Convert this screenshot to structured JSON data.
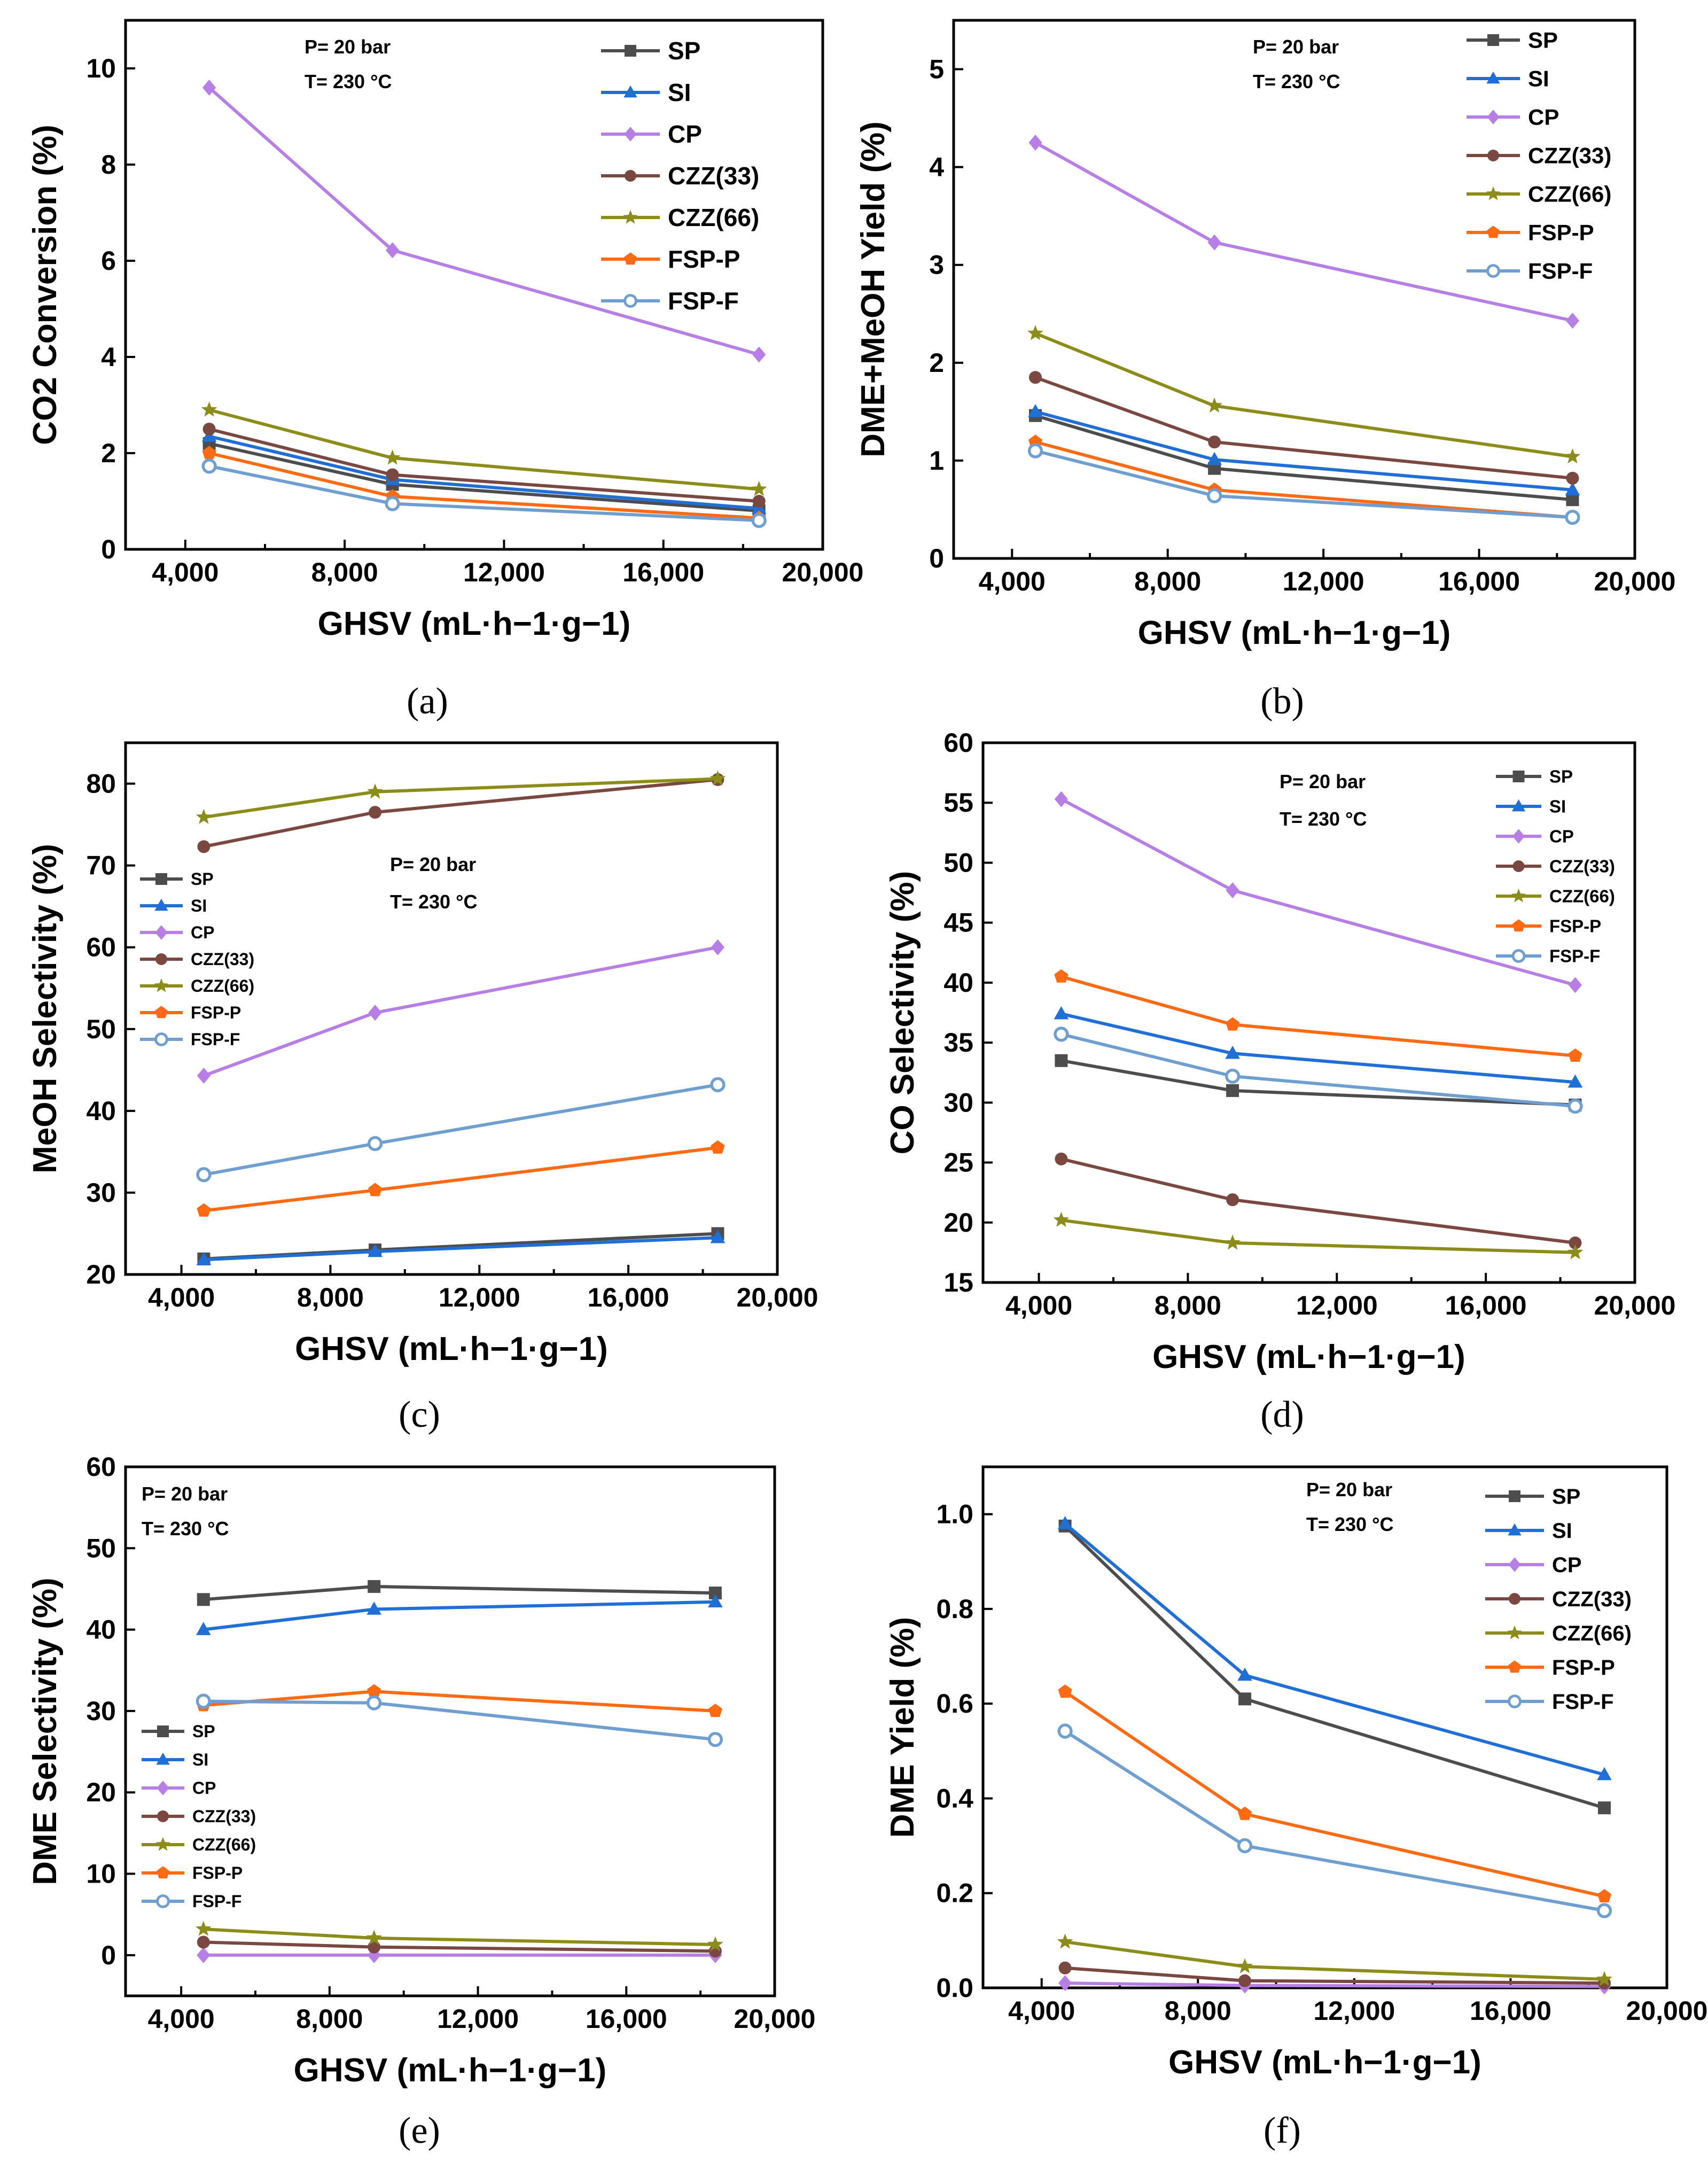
{
  "chart_data": [
    {
      "type": "line",
      "panel": "a",
      "caption": "(a)",
      "ylabel": "CO2 Conversion (%)",
      "xlabel": "GHSV (mL·h−1·g−1)",
      "x": [
        4600,
        9200,
        18400
      ],
      "xlim": [
        2500,
        20000
      ],
      "xticks": [
        4000,
        8000,
        12000,
        16000,
        20000
      ],
      "xtick_labels": [
        "4,000",
        "8,000",
        "12,000",
        "16,000",
        "20,000"
      ],
      "ylim": [
        0,
        11
      ],
      "yticks": [
        0,
        2,
        4,
        6,
        8,
        10
      ],
      "ytick_labels": [
        "0",
        "2",
        "4",
        "6",
        "8",
        "10"
      ],
      "conditions": [
        "P= 20 bar",
        "T= 230 °C"
      ],
      "legend_position": "top-right",
      "series": [
        {
          "name": "SP",
          "values": [
            2.2,
            1.35,
            0.8
          ]
        },
        {
          "name": "SI",
          "values": [
            2.35,
            1.45,
            0.85
          ]
        },
        {
          "name": "CP",
          "values": [
            9.6,
            6.22,
            4.05
          ]
        },
        {
          "name": "CZZ(33)",
          "values": [
            2.5,
            1.55,
            1.0
          ]
        },
        {
          "name": "CZZ(66)",
          "values": [
            2.9,
            1.9,
            1.25
          ]
        },
        {
          "name": "FSP-P",
          "values": [
            2.0,
            1.1,
            0.65
          ]
        },
        {
          "name": "FSP-F",
          "values": [
            1.73,
            0.95,
            0.6
          ]
        }
      ]
    },
    {
      "type": "line",
      "panel": "b",
      "caption": "(b)",
      "ylabel": "DME+MeOH Yield (%)",
      "xlabel": "GHSV (mL·h−1·g−1)",
      "x": [
        4600,
        9200,
        18400
      ],
      "xlim": [
        2500,
        20000
      ],
      "xticks": [
        4000,
        8000,
        12000,
        16000,
        20000
      ],
      "xtick_labels": [
        "4,000",
        "8,000",
        "12,000",
        "16,000",
        "20,000"
      ],
      "ylim": [
        0,
        5.5
      ],
      "yticks": [
        0,
        1,
        2,
        3,
        4,
        5
      ],
      "ytick_labels": [
        "0",
        "1",
        "2",
        "3",
        "4",
        "5"
      ],
      "conditions": [
        "P= 20 bar",
        "T= 230 °C"
      ],
      "legend_position": "top-right",
      "series": [
        {
          "name": "SP",
          "values": [
            1.46,
            0.92,
            0.6
          ]
        },
        {
          "name": "SI",
          "values": [
            1.5,
            1.01,
            0.7
          ]
        },
        {
          "name": "CP",
          "values": [
            4.25,
            3.23,
            2.43
          ]
        },
        {
          "name": "CZZ(33)",
          "values": [
            1.85,
            1.19,
            0.82
          ]
        },
        {
          "name": "CZZ(66)",
          "values": [
            2.3,
            1.56,
            1.04
          ]
        },
        {
          "name": "FSP-P",
          "values": [
            1.19,
            0.7,
            0.42
          ]
        },
        {
          "name": "FSP-F",
          "values": [
            1.1,
            0.64,
            0.42
          ]
        }
      ]
    },
    {
      "type": "line",
      "panel": "c",
      "caption": "(c)",
      "ylabel": "MeOH Selectivity (%)",
      "xlabel": "GHSV (mL·h−1·g−1)",
      "x": [
        4600,
        9200,
        18400
      ],
      "xlim": [
        2500,
        20000
      ],
      "xticks": [
        4000,
        8000,
        12000,
        16000,
        20000
      ],
      "xtick_labels": [
        "4,000",
        "8,000",
        "12,000",
        "16,000",
        "20,000"
      ],
      "ylim": [
        20,
        85
      ],
      "yticks": [
        20,
        30,
        40,
        50,
        60,
        70,
        80
      ],
      "ytick_labels": [
        "20",
        "30",
        "40",
        "50",
        "60",
        "70",
        "80"
      ],
      "conditions": [
        "P= 20 bar",
        "T= 230 °C"
      ],
      "legend_position": "middle-left",
      "series": [
        {
          "name": "SP",
          "values": [
            21.9,
            23.0,
            25.0
          ]
        },
        {
          "name": "SI",
          "values": [
            21.8,
            22.8,
            24.5
          ]
        },
        {
          "name": "CP",
          "values": [
            44.3,
            52.0,
            60.0
          ]
        },
        {
          "name": "CZZ(33)",
          "values": [
            72.3,
            76.5,
            80.5
          ]
        },
        {
          "name": "CZZ(66)",
          "values": [
            75.9,
            79.0,
            80.6
          ]
        },
        {
          "name": "FSP-P",
          "values": [
            27.8,
            30.3,
            35.5
          ]
        },
        {
          "name": "FSP-F",
          "values": [
            32.2,
            36.0,
            43.2
          ]
        }
      ]
    },
    {
      "type": "line",
      "panel": "d",
      "caption": "(d)",
      "ylabel": "CO Selectivity (%)",
      "xlabel": "GHSV (mL·h−1·g−1)",
      "x": [
        4600,
        9200,
        18400
      ],
      "xlim": [
        2500,
        20000
      ],
      "xticks": [
        4000,
        8000,
        12000,
        16000,
        20000
      ],
      "xtick_labels": [
        "4,000",
        "8,000",
        "12,000",
        "16,000",
        "20,000"
      ],
      "ylim": [
        15,
        60
      ],
      "yticks": [
        15,
        20,
        25,
        30,
        35,
        40,
        45,
        50,
        55,
        60
      ],
      "ytick_labels": [
        "15",
        "20",
        "25",
        "30",
        "35",
        "40",
        "45",
        "50",
        "55",
        "60"
      ],
      "conditions": [
        "P= 20 bar",
        "T= 230 °C"
      ],
      "legend_position": "top-right",
      "series": [
        {
          "name": "SP",
          "values": [
            33.5,
            31.0,
            29.8
          ]
        },
        {
          "name": "SI",
          "values": [
            37.4,
            34.1,
            31.7
          ]
        },
        {
          "name": "CP",
          "values": [
            55.3,
            47.7,
            39.8
          ]
        },
        {
          "name": "CZZ(33)",
          "values": [
            25.3,
            21.9,
            18.3
          ]
        },
        {
          "name": "CZZ(66)",
          "values": [
            20.2,
            18.3,
            17.5
          ]
        },
        {
          "name": "FSP-P",
          "values": [
            40.5,
            36.5,
            33.9
          ]
        },
        {
          "name": "FSP-F",
          "values": [
            35.7,
            32.2,
            29.7
          ]
        }
      ]
    },
    {
      "type": "line",
      "panel": "e",
      "caption": "(e)",
      "ylabel": "DME Selectivity (%)",
      "xlabel": "GHSV (mL·h−1·g−1)",
      "x": [
        4600,
        9200,
        18400
      ],
      "xlim": [
        2500,
        20000
      ],
      "xticks": [
        4000,
        8000,
        12000,
        16000,
        20000
      ],
      "xtick_labels": [
        "4,000",
        "8,000",
        "12,000",
        "16,000",
        "20,000"
      ],
      "ylim": [
        -5,
        60
      ],
      "yticks": [
        0,
        10,
        20,
        30,
        40,
        50,
        60
      ],
      "ytick_labels": [
        "0",
        "10",
        "20",
        "30",
        "40",
        "50",
        "60"
      ],
      "conditions": [
        "P= 20 bar",
        "T= 230 °C"
      ],
      "legend_position": "lower-left",
      "series": [
        {
          "name": "SP",
          "values": [
            43.7,
            45.3,
            44.5
          ]
        },
        {
          "name": "SI",
          "values": [
            40.0,
            42.5,
            43.4
          ]
        },
        {
          "name": "CP",
          "values": [
            0.0,
            0.0,
            0.0
          ]
        },
        {
          "name": "CZZ(33)",
          "values": [
            1.6,
            1.0,
            0.5
          ]
        },
        {
          "name": "CZZ(66)",
          "values": [
            3.2,
            2.1,
            1.3
          ]
        },
        {
          "name": "FSP-P",
          "values": [
            30.7,
            32.4,
            30.0
          ]
        },
        {
          "name": "FSP-F",
          "values": [
            31.2,
            31.0,
            26.5
          ]
        }
      ]
    },
    {
      "type": "line",
      "panel": "f",
      "caption": "(f)",
      "ylabel": "DME Yield (%)",
      "xlabel": "GHSV (mL·h−1·g−1)",
      "x": [
        4600,
        9200,
        18400
      ],
      "xlim": [
        2500,
        20000
      ],
      "xticks": [
        4000,
        8000,
        12000,
        16000,
        20000
      ],
      "xtick_labels": [
        "4,000",
        "8,000",
        "12,000",
        "16,000",
        "20,000"
      ],
      "ylim": [
        0,
        1.1
      ],
      "yticks": [
        0,
        0.2,
        0.4,
        0.6,
        0.8,
        1.0
      ],
      "ytick_labels": [
        "0.0",
        "0.2",
        "0.4",
        "0.6",
        "0.8",
        "1.0"
      ],
      "conditions": [
        "P= 20 bar",
        "T= 230 °C"
      ],
      "legend_position": "top-right",
      "series": [
        {
          "name": "SP",
          "values": [
            0.975,
            0.61,
            0.38
          ]
        },
        {
          "name": "SI",
          "values": [
            0.98,
            0.66,
            0.45
          ]
        },
        {
          "name": "CP",
          "values": [
            0.01,
            0.005,
            0.003
          ]
        },
        {
          "name": "CZZ(33)",
          "values": [
            0.042,
            0.015,
            0.01
          ]
        },
        {
          "name": "CZZ(66)",
          "values": [
            0.097,
            0.045,
            0.018
          ]
        },
        {
          "name": "FSP-P",
          "values": [
            0.625,
            0.367,
            0.193
          ]
        },
        {
          "name": "FSP-F",
          "values": [
            0.542,
            0.3,
            0.163
          ]
        }
      ]
    }
  ],
  "series_styles": [
    {
      "name": "SP",
      "color": "#4d4d4d",
      "marker": "square"
    },
    {
      "name": "SI",
      "color": "#1f6fd6",
      "marker": "triangle"
    },
    {
      "name": "CP",
      "color": "#b77ee6",
      "marker": "diamond"
    },
    {
      "name": "CZZ(33)",
      "color": "#7a4840",
      "marker": "circle"
    },
    {
      "name": "CZZ(66)",
      "color": "#8c8c1a",
      "marker": "star"
    },
    {
      "name": "FSP-P",
      "color": "#ff6a13",
      "marker": "pentagon"
    },
    {
      "name": "FSP-F",
      "color": "#6f9fd0",
      "marker": "hollow-circle"
    }
  ]
}
